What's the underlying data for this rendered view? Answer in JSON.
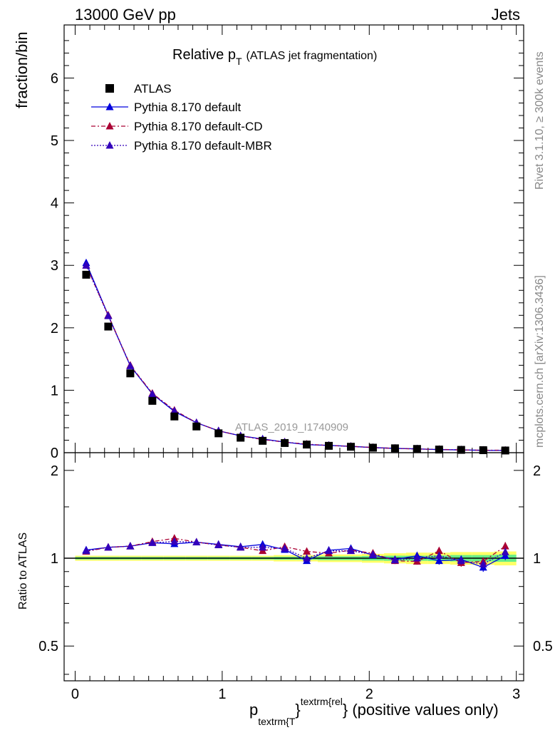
{
  "header": {
    "left": "13000 GeV pp",
    "right": "Jets"
  },
  "sidebar": {
    "rivet": "Rivet 3.1.10, ≥ 300k events",
    "mcplots": "mcplots.cern.ch [arXiv:1306.3436]"
  },
  "chart_data": {
    "type": "scatter",
    "title_main": "Relative p",
    "title_sub": "T",
    "title_rest": "(ATLAS jet fragmentation)",
    "watermark": "ATLAS_2019_I1740909",
    "ylabel": "fraction/bin",
    "ratio_ylabel": "Ratio to ATLAS",
    "xlabel": {
      "p": "p",
      "sub": "textrm{T",
      "brace": "}",
      "sup": "textrm{rel",
      "brace2": "}",
      "rest": " (positive values only)"
    },
    "xlim": [
      -0.075,
      3.05
    ],
    "ylim": [
      0,
      6.85
    ],
    "ratio_ylim": [
      0.38,
      2.3
    ],
    "x_ticks": [
      "0",
      "1",
      "2",
      "3"
    ],
    "y_ticks": [
      "0",
      "1",
      "2",
      "3",
      "4",
      "5",
      "6"
    ],
    "ratio_ticks": [
      "0.5",
      "1",
      "2"
    ],
    "x": [
      0.075,
      0.225,
      0.375,
      0.525,
      0.675,
      0.825,
      0.975,
      1.125,
      1.275,
      1.425,
      1.575,
      1.725,
      1.875,
      2.025,
      2.175,
      2.325,
      2.475,
      2.625,
      2.775,
      2.925
    ],
    "legend": [
      "ATLAS",
      "Pythia 8.170 default",
      "Pythia 8.170 default-CD",
      "Pythia 8.170 default-MBR"
    ],
    "series": [
      {
        "name": "ATLAS",
        "color": "#000000",
        "values": [
          2.85,
          2.02,
          1.27,
          0.83,
          0.58,
          0.42,
          0.31,
          0.24,
          0.19,
          0.155,
          0.13,
          0.11,
          0.095,
          0.08,
          0.07,
          0.06,
          0.05,
          0.045,
          0.04,
          0.035
        ]
      },
      {
        "name": "Pythia 8.170 default",
        "color": "#0000dd",
        "values": [
          3.04,
          2.2,
          1.39,
          0.94,
          0.66,
          0.48,
          0.35,
          0.27,
          0.22,
          0.17,
          0.128,
          0.117,
          0.102,
          0.082,
          0.069,
          0.061,
          0.049,
          0.045,
          0.037,
          0.036
        ],
        "ratio": [
          1.067,
          1.09,
          1.1,
          1.13,
          1.12,
          1.135,
          1.115,
          1.095,
          1.115,
          1.07,
          0.98,
          1.065,
          1.08,
          1.025,
          0.99,
          1.02,
          0.98,
          0.99,
          0.93,
          1.02
        ]
      },
      {
        "name": "Pythia 8.170 default-CD",
        "color": "#aa0033",
        "values": [
          3.0,
          2.2,
          1.4,
          0.95,
          0.68,
          0.48,
          0.35,
          0.27,
          0.21,
          0.17,
          0.137,
          0.115,
          0.102,
          0.083,
          0.068,
          0.059,
          0.053,
          0.044,
          0.039,
          0.039
        ],
        "ratio": [
          1.055,
          1.09,
          1.1,
          1.14,
          1.17,
          1.135,
          1.11,
          1.09,
          1.06,
          1.095,
          1.055,
          1.04,
          1.065,
          1.04,
          0.98,
          0.975,
          1.06,
          0.965,
          0.975,
          1.1
        ]
      },
      {
        "name": "Pythia 8.170 default-MBR",
        "color": "#3300bb",
        "values": [
          3.0,
          2.19,
          1.39,
          0.94,
          0.67,
          0.48,
          0.35,
          0.27,
          0.215,
          0.17,
          0.13,
          0.117,
          0.1,
          0.082,
          0.069,
          0.06,
          0.05,
          0.045,
          0.038,
          0.036
        ],
        "ratio": [
          1.06,
          1.09,
          1.1,
          1.13,
          1.14,
          1.135,
          1.11,
          1.09,
          1.09,
          1.08,
          1.0,
          1.06,
          1.06,
          1.03,
          0.985,
          1.0,
          1.02,
          0.98,
          0.955,
          1.05
        ]
      }
    ],
    "ratio_errors": [
      0.008,
      0.008,
      0.008,
      0.01,
      0.01,
      0.01,
      0.01,
      0.012,
      0.012,
      0.015,
      0.015,
      0.018,
      0.02,
      0.022,
      0.025,
      0.025,
      0.03,
      0.03,
      0.032,
      0.035
    ],
    "band_outer": [
      0.02,
      0.02,
      0.02,
      0.02,
      0.02,
      0.02,
      0.02,
      0.02,
      0.02,
      0.025,
      0.025,
      0.03,
      0.03,
      0.035,
      0.04,
      0.045,
      0.045,
      0.05,
      0.05,
      0.055
    ],
    "band_inner": [
      0.01,
      0.01,
      0.01,
      0.01,
      0.01,
      0.01,
      0.01,
      0.01,
      0.01,
      0.012,
      0.012,
      0.015,
      0.015,
      0.018,
      0.02,
      0.02,
      0.022,
      0.025,
      0.025,
      0.028
    ],
    "band_colors": {
      "outer": "#ffff66",
      "inner": "#66ee88"
    }
  }
}
